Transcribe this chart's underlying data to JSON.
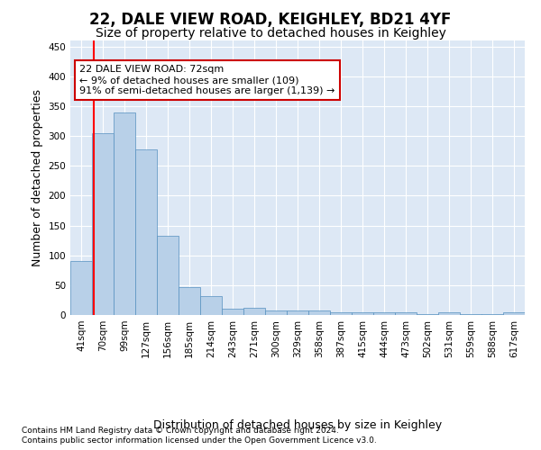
{
  "title": "22, DALE VIEW ROAD, KEIGHLEY, BD21 4YF",
  "subtitle": "Size of property relative to detached houses in Keighley",
  "xlabel": "Distribution of detached houses by size in Keighley",
  "ylabel": "Number of detached properties",
  "categories": [
    "41sqm",
    "70sqm",
    "99sqm",
    "127sqm",
    "156sqm",
    "185sqm",
    "214sqm",
    "243sqm",
    "271sqm",
    "300sqm",
    "329sqm",
    "358sqm",
    "387sqm",
    "415sqm",
    "444sqm",
    "473sqm",
    "502sqm",
    "531sqm",
    "559sqm",
    "588sqm",
    "617sqm"
  ],
  "values": [
    90,
    305,
    340,
    278,
    132,
    47,
    32,
    10,
    12,
    7,
    8,
    7,
    4,
    4,
    4,
    4,
    2,
    4,
    2,
    2,
    5
  ],
  "bar_color": "#b8d0e8",
  "bar_edge_color": "#5590c0",
  "bar_width": 1.0,
  "ylim": [
    0,
    460
  ],
  "yticks": [
    0,
    50,
    100,
    150,
    200,
    250,
    300,
    350,
    400,
    450
  ],
  "red_line_x": 0.58,
  "annotation_text": "22 DALE VIEW ROAD: 72sqm\n← 9% of detached houses are smaller (109)\n91% of semi-detached houses are larger (1,139) →",
  "annotation_box_facecolor": "#ffffff",
  "annotation_box_edgecolor": "#cc0000",
  "fig_facecolor": "#ffffff",
  "plot_bg_color": "#dde8f5",
  "title_fontsize": 12,
  "subtitle_fontsize": 10,
  "tick_fontsize": 7.5,
  "ylabel_fontsize": 9,
  "xlabel_fontsize": 9,
  "annot_fontsize": 8,
  "footnote1": "Contains HM Land Registry data © Crown copyright and database right 2024.",
  "footnote2": "Contains public sector information licensed under the Open Government Licence v3.0.",
  "footnote_fontsize": 6.5
}
